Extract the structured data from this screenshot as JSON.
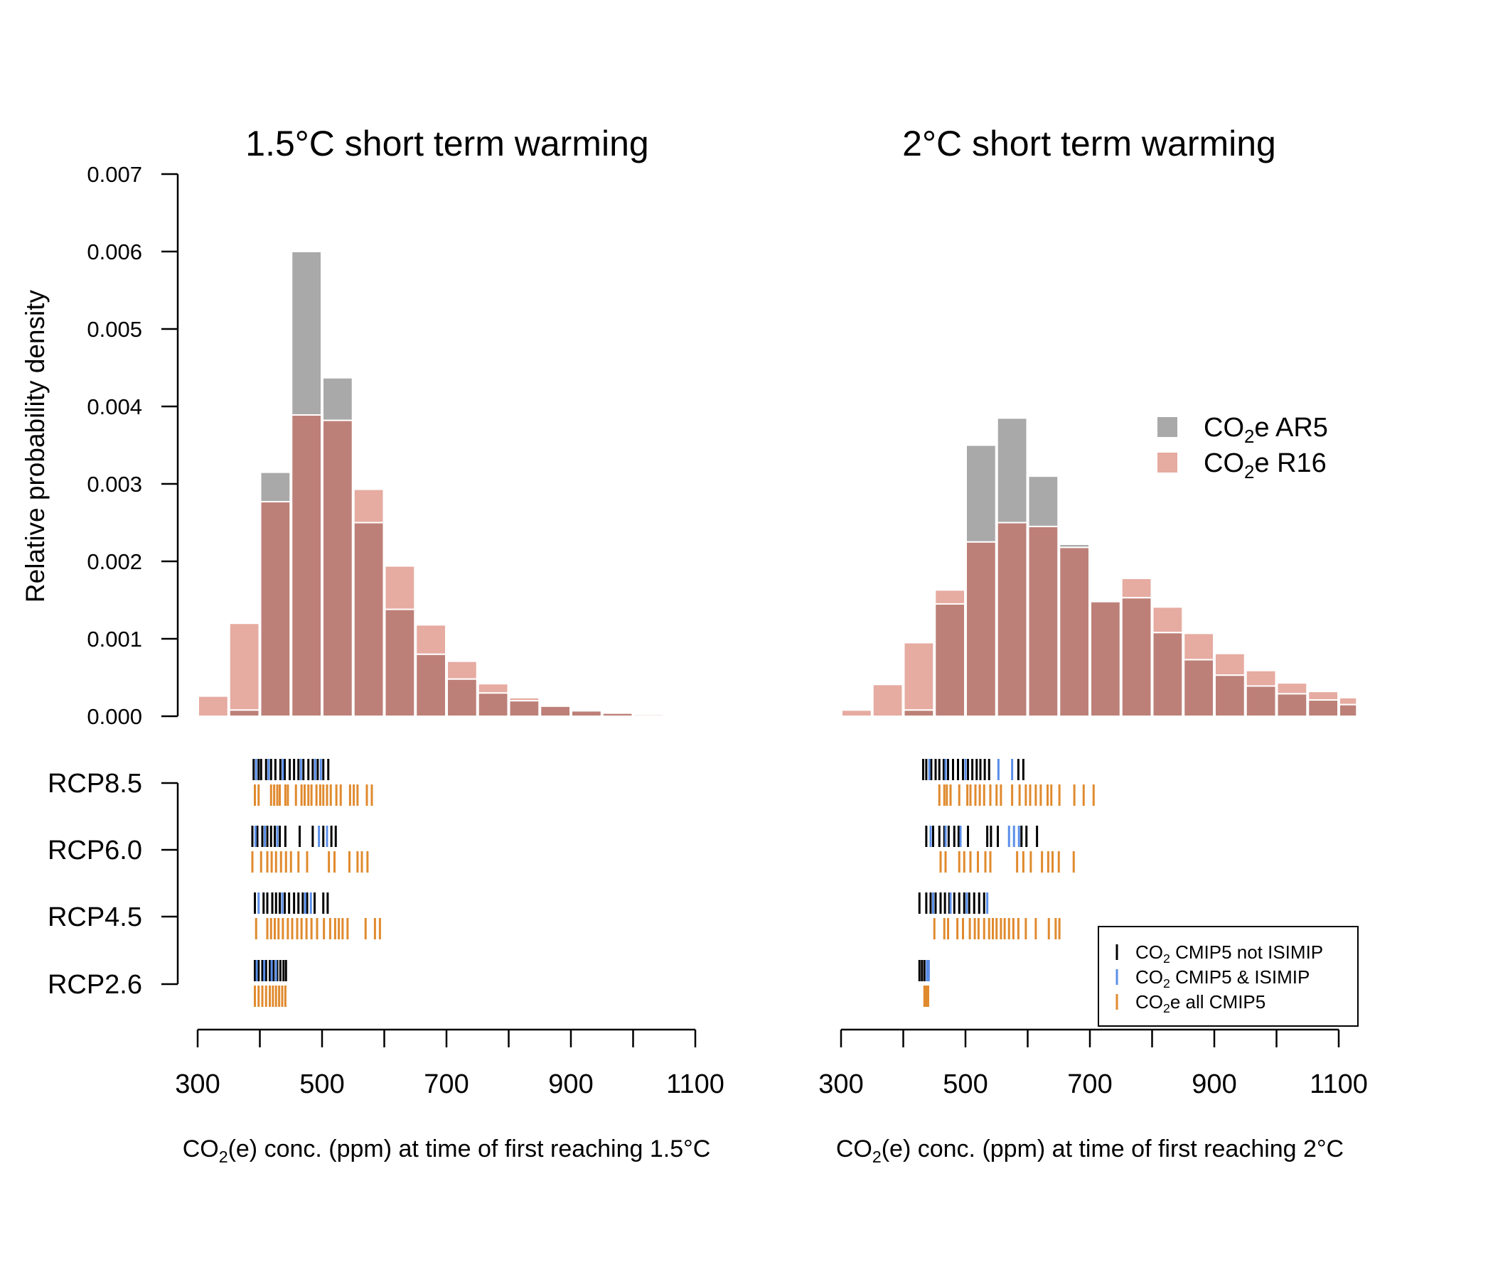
{
  "colors": {
    "ar5": "#a9a9a9",
    "r16": "#e6aba1",
    "overlap": "#bd8078",
    "not_isimip": "#000000",
    "isimip": "#5b8fe8",
    "co2e": "#e08a2e"
  },
  "chart_data": [
    {
      "type": "bar",
      "title": "1.5°C short term warming",
      "xlabel": {
        "pre": "CO",
        "sub": "2",
        "post": "(e) conc. (ppm) at time of first reaching 1.5°C"
      },
      "ylabel": "Relative probability density",
      "xlim": [
        300,
        1100
      ],
      "ylim": [
        0,
        0.007
      ],
      "xticks": [
        "300",
        "500",
        "700",
        "900",
        "1100"
      ],
      "yticks": [
        "0.000",
        "0.001",
        "0.002",
        "0.003",
        "0.004",
        "0.005",
        "0.006",
        "0.007"
      ],
      "bin_edges": [
        300,
        350,
        400,
        450,
        500,
        550,
        600,
        650,
        700,
        750,
        800,
        850,
        900,
        950,
        1000,
        1050,
        1100
      ],
      "series": [
        {
          "name": "CO2e AR5",
          "values": [
            0,
            8e-05,
            0.00315,
            0.006,
            0.00437,
            0.0025,
            0.00138,
            0.0008,
            0.00048,
            0.0003,
            0.0002,
            0.00013,
            8e-05,
            4e-05,
            2e-05,
            0
          ]
        },
        {
          "name": "CO2e R16",
          "values": [
            0.00026,
            0.0012,
            0.00277,
            0.00389,
            0.00382,
            0.00293,
            0.00194,
            0.00118,
            0.00071,
            0.00042,
            0.00024,
            0.00013,
            7e-05,
            4e-05,
            2e-05,
            0
          ]
        }
      ],
      "rcp_labels": [
        "RCP8.5",
        "RCP6.0",
        "RCP4.5",
        "RCP2.6"
      ],
      "rug": [
        {
          "scenario": "RCP8.5",
          "not_isimip": [
            390,
            398,
            402,
            410,
            418,
            425,
            433,
            440,
            448,
            455,
            462,
            470,
            478,
            485,
            493,
            502,
            510
          ],
          "isimip": [
            394,
            414,
            437,
            466,
            489,
            498
          ],
          "co2e": [
            392,
            398,
            418,
            423,
            428,
            432,
            441,
            445,
            458,
            467,
            472,
            478,
            483,
            491,
            497,
            502,
            508,
            514,
            523,
            530,
            545,
            551,
            557,
            572,
            580
          ]
        },
        {
          "scenario": "RCP6.0",
          "not_isimip": [
            388,
            396,
            404,
            412,
            418,
            424,
            432,
            441,
            464,
            485,
            502,
            515,
            522
          ],
          "isimip": [
            393,
            408,
            428,
            495,
            508
          ],
          "co2e": [
            388,
            402,
            412,
            419,
            426,
            434,
            442,
            450,
            462,
            476,
            511,
            520,
            544,
            557,
            564,
            573
          ]
        },
        {
          "scenario": "RCP4.5",
          "not_isimip": [
            392,
            406,
            412,
            420,
            426,
            432,
            440,
            447,
            455,
            462,
            469,
            476,
            488,
            502,
            509
          ],
          "isimip": [
            398,
            436,
            473,
            482
          ],
          "co2e": [
            394,
            412,
            418,
            424,
            430,
            437,
            445,
            452,
            460,
            467,
            475,
            483,
            492,
            503,
            513,
            521,
            527,
            533,
            541,
            570,
            585,
            593
          ]
        },
        {
          "scenario": "RCP2.6",
          "not_isimip": [
            392,
            398,
            404,
            410,
            416,
            422,
            428,
            433,
            438,
            442
          ],
          "isimip": [
            395,
            407,
            419,
            426
          ],
          "co2e": [
            392,
            398,
            404,
            410,
            416,
            421,
            426,
            431,
            436,
            441
          ]
        }
      ]
    },
    {
      "type": "bar",
      "title": "2°C short term warming",
      "xlabel": {
        "pre": "CO",
        "sub": "2",
        "post": "(e) conc. (ppm) at time of first reaching 2°C"
      },
      "ylabel": "",
      "xlim": [
        300,
        1100
      ],
      "ylim": [
        0,
        0.007
      ],
      "xticks": [
        "300",
        "500",
        "700",
        "900",
        "1100"
      ],
      "bin_edges": [
        300,
        350,
        400,
        450,
        500,
        550,
        600,
        650,
        700,
        750,
        800,
        850,
        900,
        950,
        1000,
        1050,
        1100,
        1130
      ],
      "series": [
        {
          "name": "CO2e AR5",
          "values": [
            0,
            0,
            8e-05,
            0.00145,
            0.0035,
            0.00385,
            0.0031,
            0.00222,
            0.0015,
            0.00153,
            0.00108,
            0.00073,
            0.00053,
            0.00039,
            0.00029,
            0.00021,
            0.00015
          ]
        },
        {
          "name": "CO2e R16",
          "values": [
            8e-05,
            0.00041,
            0.00095,
            0.00163,
            0.00225,
            0.0025,
            0.00245,
            0.00218,
            0.00148,
            0.00178,
            0.00141,
            0.00107,
            0.00081,
            0.00059,
            0.00043,
            0.00032,
            0.00024,
            0.00017
          ]
        }
      ],
      "rug": [
        {
          "scenario": "RCP8.5",
          "not_isimip": [
            432,
            437,
            445,
            452,
            458,
            465,
            472,
            480,
            488,
            496,
            504,
            511,
            518,
            524,
            531,
            538,
            585,
            593
          ],
          "isimip": [
            442,
            468,
            500,
            553,
            575
          ],
          "co2e": [
            458,
            466,
            470,
            476,
            490,
            503,
            508,
            516,
            523,
            530,
            540,
            550,
            557,
            575,
            587,
            597,
            604,
            613,
            621,
            632,
            638,
            651,
            675,
            690,
            706
          ]
        },
        {
          "scenario": "RCP6.0",
          "not_isimip": [
            437,
            448,
            458,
            466,
            473,
            482,
            489,
            504,
            535,
            541,
            552,
            590,
            598,
            615
          ],
          "isimip": [
            444,
            468,
            492,
            570,
            578,
            586
          ],
          "co2e": [
            460,
            468,
            490,
            498,
            508,
            520,
            532,
            540,
            583,
            593,
            605,
            623,
            633,
            640,
            650,
            674
          ]
        },
        {
          "scenario": "RCP4.5",
          "not_isimip": [
            426,
            437,
            444,
            452,
            460,
            467,
            474,
            482,
            490,
            498,
            506,
            514,
            522,
            530
          ],
          "isimip": [
            448,
            476,
            502,
            535
          ],
          "co2e": [
            450,
            466,
            472,
            487,
            496,
            507,
            515,
            521,
            530,
            538,
            544,
            550,
            557,
            563,
            570,
            577,
            585,
            597,
            613,
            634,
            645,
            651
          ]
        },
        {
          "scenario": "RCP2.6",
          "not_isimip": [
            426,
            430,
            434
          ],
          "isimip": [
            438,
            441
          ],
          "co2e": [
            434,
            437,
            440
          ]
        }
      ]
    }
  ],
  "legend_hist": [
    {
      "pre": "CO",
      "sub": "2",
      "post": "e AR5"
    },
    {
      "pre": "CO",
      "sub": "2",
      "post": "e R16"
    }
  ],
  "legend_rug": [
    {
      "pre": "CO",
      "sub": "2",
      "post": " CMIP5 not ISIMIP"
    },
    {
      "pre": "CO",
      "sub": "2",
      "post": " CMIP5 & ISIMIP"
    },
    {
      "pre": "CO",
      "sub": "2",
      "post": "e all CMIP5"
    }
  ]
}
